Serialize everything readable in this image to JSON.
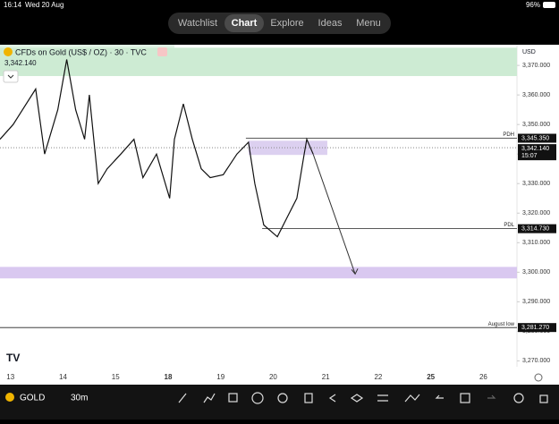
{
  "status_bar": {
    "time": "16:14",
    "date": "Wed 20 Aug",
    "battery": "96%"
  },
  "nav": {
    "tabs": [
      "Watchlist",
      "Chart",
      "Explore",
      "Ideas",
      "Menu"
    ],
    "selected": "Chart"
  },
  "symbol": {
    "title": "CFDs on Gold (US$ / OZ) · 30 · TVC",
    "currency": "USD"
  },
  "toolbar": {
    "symbol": "GOLD",
    "interval": "30m"
  },
  "chart_data": {
    "type": "line",
    "color": "#111111",
    "x": [
      -0.2,
      0.05,
      0.48,
      0.65,
      0.9,
      1.07,
      1.24,
      1.41,
      1.5,
      1.67,
      1.84,
      2.1,
      2.35,
      2.52,
      2.78,
      3.03,
      3.12,
      3.29,
      3.46,
      3.63,
      3.8,
      4.05,
      4.31,
      4.53,
      4.65,
      4.82,
      5.08,
      5.25,
      5.45,
      5.59,
      5.64,
      5.76
    ],
    "values": [
      3345,
      3350,
      3362,
      3340,
      3355,
      3372,
      3355,
      3345,
      3360,
      3330,
      3335,
      3340,
      3345,
      3332,
      3340,
      3325,
      3345,
      3357,
      3345,
      3335,
      3332,
      3333,
      3340,
      3344,
      3330,
      3316,
      3312,
      3318,
      3325,
      3340,
      3345,
      3340
    ],
    "xlim": [
      -0.2,
      9.64
    ],
    "ylim": [
      3268,
      3377
    ],
    "xticks": [
      {
        "value": 0,
        "label": "13"
      },
      {
        "value": 1,
        "label": "14"
      },
      {
        "value": 2,
        "label": "15"
      },
      {
        "value": 3,
        "label": "18"
      },
      {
        "value": 4,
        "label": "19"
      },
      {
        "value": 5,
        "label": "20"
      },
      {
        "value": 6,
        "label": "21"
      },
      {
        "value": 7,
        "label": "22"
      },
      {
        "value": 8,
        "label": "25"
      },
      {
        "value": 9,
        "label": "26"
      }
    ],
    "yticks": [
      {
        "value": 3370,
        "label": "3,370.000"
      },
      {
        "value": 3360,
        "label": "3,360.000"
      },
      {
        "value": 3350,
        "label": "3,350.000"
      },
      {
        "value": 3340,
        "label": "3,340.000"
      },
      {
        "value": 3330,
        "label": "3,330.000"
      },
      {
        "value": 3320,
        "label": "3,320.000"
      },
      {
        "value": 3310,
        "label": "3,310.000"
      },
      {
        "value": 3300,
        "label": "3,300.000"
      },
      {
        "value": 3290,
        "label": "3,290.000"
      },
      {
        "value": 3280,
        "label": "3,280.000"
      },
      {
        "value": 3270,
        "label": "3,270.000"
      }
    ],
    "zones": [
      {
        "top": 3376,
        "bottom": 3366.4,
        "x0": -0.2,
        "x1": 9.64,
        "color": "#cdebd3"
      },
      {
        "top": 3344.5,
        "bottom": 3339.7,
        "x0": 4.53,
        "x1": 6.03,
        "color": "#dcd0f0"
      },
      {
        "top": 3301.8,
        "bottom": 3297.9,
        "x0": -0.2,
        "x1": 9.64,
        "color": "#d9c8f0"
      }
    ],
    "levels": [
      {
        "name": "PDH",
        "value": 3345.35,
        "label": "3,345.350",
        "x0": 4.48
      },
      {
        "name": "PDL",
        "value": 3314.73,
        "label": "3,314.730",
        "x0": 4.79
      },
      {
        "name": "August low",
        "value": 3281.27,
        "label": "3,281.270",
        "x0": -0.2
      }
    ],
    "current": {
      "value": 3342.14,
      "label": "3,342.140",
      "countdown": "15:07"
    },
    "arrow": {
      "x": [
        5.76,
        6.56
      ],
      "values": [
        3340,
        3299.4
      ]
    }
  }
}
